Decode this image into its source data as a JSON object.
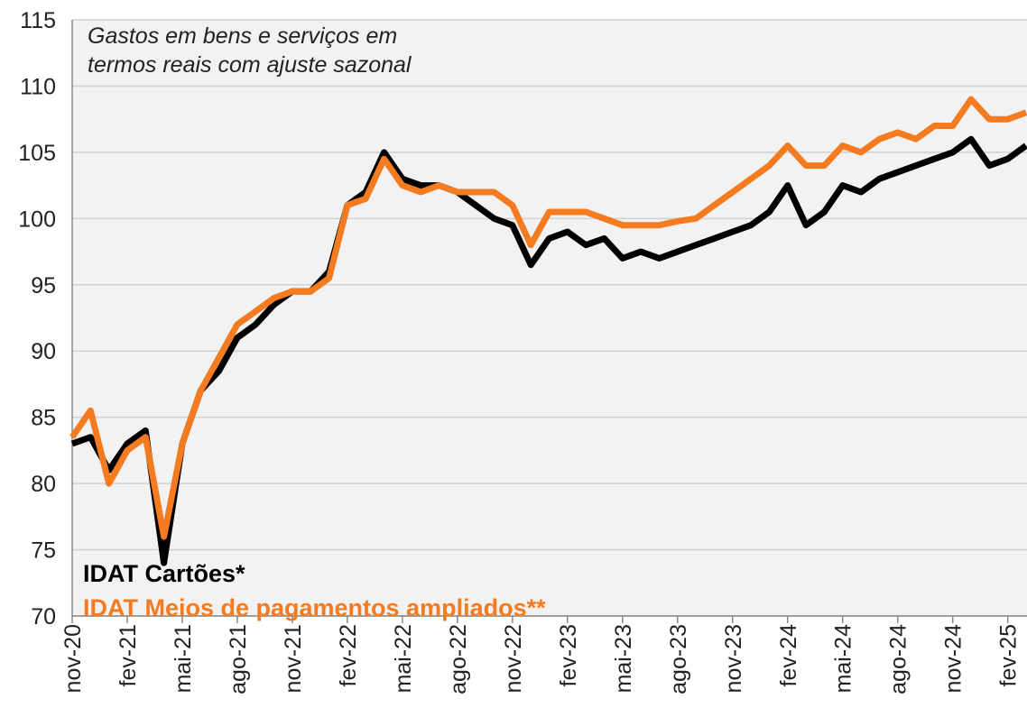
{
  "chart_data": {
    "type": "line",
    "annotation": [
      "Gastos em bens e serviços em",
      "termos reais com ajuste sazonal"
    ],
    "categories": [
      "nov-20",
      null,
      null,
      "fev-21",
      null,
      null,
      "mai-21",
      null,
      null,
      "ago-21",
      null,
      null,
      "nov-21",
      null,
      null,
      "fev-22",
      null,
      null,
      "mai-22",
      null,
      null,
      "ago-22",
      null,
      null,
      "nov-22",
      null,
      null,
      "fev-23",
      null,
      null,
      "mai-23",
      null,
      null,
      "ago-23",
      null,
      null,
      "nov-23",
      null,
      null,
      "fev-24",
      null,
      null,
      "mai-24",
      null,
      null,
      "ago-24",
      null,
      null,
      "nov-24",
      null,
      null,
      "fev-25",
      null
    ],
    "series": [
      {
        "name": "IDAT Cartões*",
        "color": "#000000",
        "values": [
          83,
          83.5,
          81,
          83,
          84,
          74,
          83,
          87,
          88.5,
          91,
          92,
          93.5,
          94.5,
          94.5,
          96,
          101,
          102,
          105,
          103,
          102.5,
          102.5,
          102,
          101,
          100,
          99.5,
          96.5,
          98.5,
          99,
          98,
          98.5,
          97,
          97.5,
          97,
          97.5,
          98,
          98.5,
          99,
          99.5,
          100.5,
          102.5,
          99.5,
          100.5,
          102.5,
          102,
          103,
          103.5,
          104,
          104.5,
          105,
          106,
          104,
          104.5,
          105.5
        ]
      },
      {
        "name": "IDAT Meios de pagamentos ampliados**",
        "color": "#f47b20",
        "values": [
          83.5,
          85.5,
          80,
          82.5,
          83.5,
          76,
          83,
          87,
          89.5,
          92,
          93,
          94,
          94.5,
          94.5,
          95.5,
          101,
          101.5,
          104.5,
          102.5,
          102,
          102.5,
          102,
          102,
          102,
          101,
          98,
          100.5,
          100.5,
          100.5,
          100,
          99.5,
          99.5,
          99.5,
          99.8,
          100,
          101,
          102,
          103,
          104,
          105.5,
          104,
          104,
          105.5,
          105,
          106,
          106.5,
          106,
          107,
          107,
          109,
          107.5,
          107.5,
          108
        ]
      }
    ],
    "ylim": [
      70,
      115
    ],
    "yticks": [
      70,
      75,
      80,
      85,
      90,
      95,
      100,
      105,
      110,
      115
    ],
    "grid": true
  }
}
